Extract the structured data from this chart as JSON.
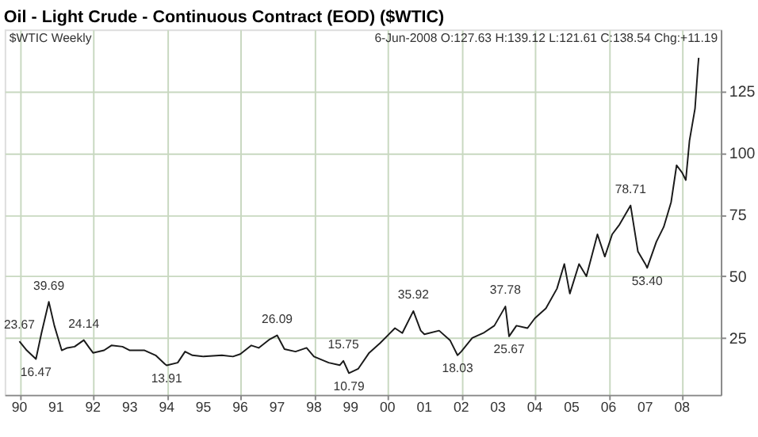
{
  "chart_data": {
    "type": "line",
    "title": "Oil - Light Crude - Continuous Contract (EOD) ($WTIC)",
    "subtitle": "$WTIC Weekly",
    "x": [
      1990.0,
      1990.2,
      1990.45,
      1990.6,
      1990.8,
      1990.95,
      1991.05,
      1991.15,
      1991.3,
      1991.5,
      1991.75,
      1991.9,
      1992.0,
      1992.3,
      1992.5,
      1992.8,
      1993.0,
      1993.4,
      1993.7,
      1993.95,
      1994.0,
      1994.3,
      1994.5,
      1994.7,
      1995.0,
      1995.5,
      1995.8,
      1996.0,
      1996.3,
      1996.5,
      1996.8,
      1997.0,
      1997.2,
      1997.5,
      1997.8,
      1998.0,
      1998.4,
      1998.7,
      1998.8,
      1998.95,
      1999.2,
      1999.5,
      1999.8,
      2000.0,
      2000.2,
      2000.4,
      2000.7,
      2000.9,
      2001.0,
      2001.4,
      2001.7,
      2001.9,
      2002.0,
      2002.3,
      2002.6,
      2002.9,
      2003.2,
      2003.3,
      2003.5,
      2003.8,
      2004.0,
      2004.3,
      2004.6,
      2004.8,
      2004.95,
      2005.2,
      2005.4,
      2005.7,
      2005.9,
      2006.1,
      2006.3,
      2006.6,
      2006.8,
      2007.0,
      2007.05,
      2007.3,
      2007.5,
      2007.7,
      2007.85,
      2008.0,
      2008.1,
      2008.2,
      2008.35,
      2008.43,
      2008.45
    ],
    "series": [
      {
        "color": "#1a1a1a",
        "values": [
          23.67,
          20,
          16.47,
          27,
          39.69,
          30,
          25,
          20,
          21,
          21.5,
          24.14,
          21,
          19,
          20,
          22,
          21.5,
          20,
          20,
          18,
          14.5,
          13.91,
          15,
          19.5,
          18,
          17.5,
          18,
          17.5,
          18.5,
          22,
          21,
          24.5,
          26.09,
          20.5,
          19.5,
          21,
          17.5,
          15,
          14,
          15.75,
          10.79,
          12.5,
          19,
          23,
          26,
          29,
          27,
          35.92,
          28,
          26.5,
          28,
          24,
          18.03,
          19.5,
          25,
          27,
          30,
          37.78,
          25.67,
          30,
          29,
          33,
          37,
          45,
          55,
          43,
          55,
          50,
          67,
          58,
          67,
          71,
          78.71,
          60,
          55,
          53.4,
          64,
          70,
          80,
          95,
          92,
          89,
          105,
          118,
          135,
          138.54
        ]
      }
    ],
    "xlim": [
      1989.6,
      2009.05
    ],
    "ylim": [
      2,
      150
    ],
    "xticks": [
      {
        "value": 1990,
        "label": "90"
      },
      {
        "value": 1991,
        "label": "91"
      },
      {
        "value": 1992,
        "label": "92"
      },
      {
        "value": 1993,
        "label": "93"
      },
      {
        "value": 1994,
        "label": "94"
      },
      {
        "value": 1995,
        "label": "95"
      },
      {
        "value": 1996,
        "label": "96"
      },
      {
        "value": 1997,
        "label": "97"
      },
      {
        "value": 1998,
        "label": "98"
      },
      {
        "value": 1999,
        "label": "99"
      },
      {
        "value": 2000,
        "label": "00"
      },
      {
        "value": 2001,
        "label": "01"
      },
      {
        "value": 2002,
        "label": "02"
      },
      {
        "value": 2003,
        "label": "03"
      },
      {
        "value": 2004,
        "label": "04"
      },
      {
        "value": 2005,
        "label": "05"
      },
      {
        "value": 2006,
        "label": "06"
      },
      {
        "value": 2007,
        "label": "07"
      },
      {
        "value": 2008,
        "label": "08"
      }
    ],
    "yticks": [
      25,
      50,
      75,
      100,
      125
    ],
    "grid": true,
    "annotations": [
      "6-Jun-2008 O:127.63 H:139.12 L:121.61 C:138.54 Chg:+11.19",
      {
        "text": "23.67",
        "x": 1990.0,
        "y": 23.67
      },
      {
        "text": "16.47",
        "x": 1990.45,
        "y": 16.47
      },
      {
        "text": "39.69",
        "x": 1990.8,
        "y": 39.69
      },
      {
        "text": "24.14",
        "x": 1991.75,
        "y": 24.14
      },
      {
        "text": "13.91",
        "x": 1994.0,
        "y": 13.91
      },
      {
        "text": "26.09",
        "x": 1997.0,
        "y": 26.09
      },
      {
        "text": "15.75",
        "x": 1998.8,
        "y": 15.75
      },
      {
        "text": "10.79",
        "x": 1998.95,
        "y": 10.79
      },
      {
        "text": "35.92",
        "x": 2000.7,
        "y": 35.92
      },
      {
        "text": "18.03",
        "x": 2001.9,
        "y": 18.03
      },
      {
        "text": "37.78",
        "x": 2003.2,
        "y": 37.78
      },
      {
        "text": "25.67",
        "x": 2003.3,
        "y": 25.67
      },
      {
        "text": "78.71",
        "x": 2006.6,
        "y": 78.71
      },
      {
        "text": "53.40",
        "x": 2007.05,
        "y": 53.4
      }
    ]
  }
}
